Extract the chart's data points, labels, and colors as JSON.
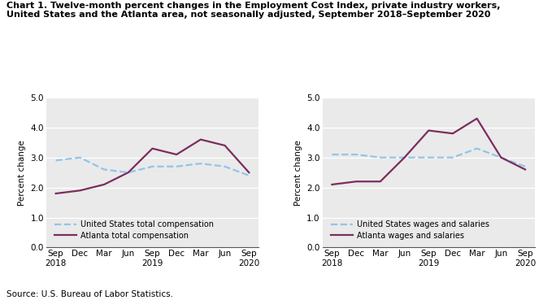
{
  "title_line1": "Chart 1. Twelve-month percent changes in the Employment Cost Index, private industry workers,",
  "title_line2": "United States and the Atlanta area, not seasonally adjusted, September 2018–September 2020",
  "source": "Source: U.S. Bureau of Labor Statistics.",
  "ylabel": "Percent change",
  "x_labels_left": [
    "Sep\n2018",
    "Dec",
    "Mar",
    "Jun",
    "Sep\n2019",
    "Dec",
    "Mar",
    "Jun",
    "Sep\n2020"
  ],
  "x_labels_right": [
    "Sep\n2018",
    "Dec",
    "Mar",
    "Jun",
    "Sep\n2019",
    "Dec",
    "Mar",
    "Jun",
    "Sep\n2020"
  ],
  "ylim": [
    0.0,
    5.0
  ],
  "yticks": [
    0.0,
    1.0,
    2.0,
    3.0,
    4.0,
    5.0
  ],
  "chart1": {
    "us_total_comp": [
      2.9,
      3.0,
      2.6,
      2.5,
      2.7,
      2.7,
      2.8,
      2.7,
      2.4
    ],
    "atlanta_total_comp": [
      1.8,
      1.9,
      2.1,
      2.5,
      3.3,
      3.1,
      3.6,
      3.4,
      2.5
    ],
    "us_label": "United States total compensation",
    "atlanta_label": "Atlanta total compensation"
  },
  "chart2": {
    "us_wages": [
      3.1,
      3.1,
      3.0,
      3.0,
      3.0,
      3.0,
      3.3,
      3.0,
      2.7
    ],
    "atlanta_wages": [
      2.1,
      2.2,
      2.2,
      3.0,
      3.9,
      3.8,
      4.3,
      3.0,
      2.6
    ],
    "us_label": "United States wages and salaries",
    "atlanta_label": "Atlanta wages and salaries"
  },
  "us_color": "#92C5E8",
  "atlanta_color": "#7B2D5E",
  "linewidth": 1.6,
  "bg_color": "#EAEAEA"
}
